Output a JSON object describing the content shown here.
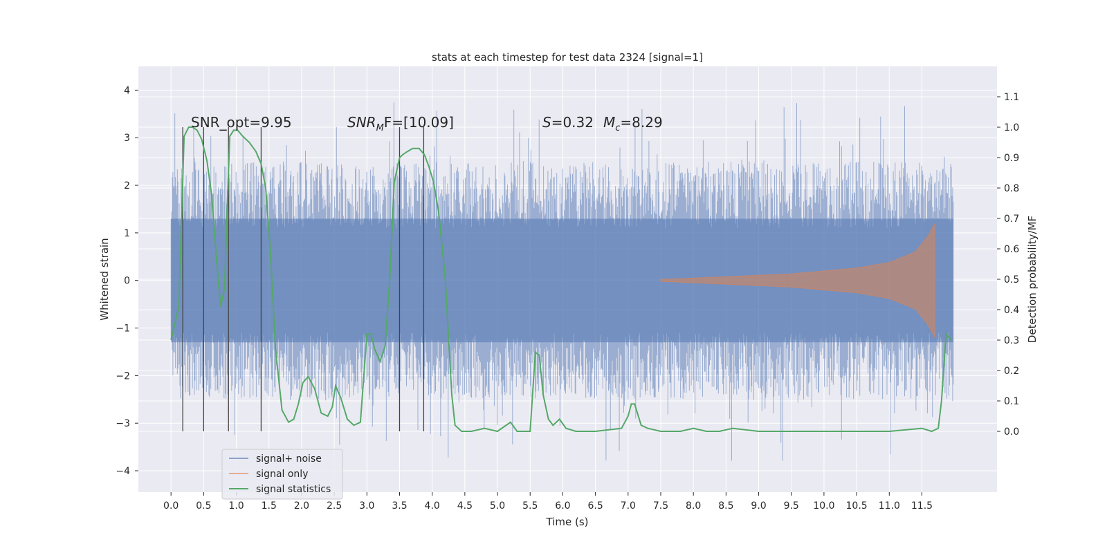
{
  "chart_data": {
    "type": "line",
    "title": "stats at each timestep for test data 2324 [signal=1]",
    "xlabel": "Time (s)",
    "ylabel_left": "Whitened strain",
    "ylabel_right": "Detection probability/MF",
    "xlim": [
      -0.5,
      12.65
    ],
    "ylim_left": [
      -4.45,
      4.5
    ],
    "ylim_right": [
      -0.2,
      1.2
    ],
    "x_ticks": [
      "0.0",
      "0.5",
      "1.0",
      "1.5",
      "2.0",
      "2.5",
      "3.0",
      "3.5",
      "4.0",
      "4.5",
      "5.0",
      "5.5",
      "6.0",
      "6.5",
      "7.0",
      "7.5",
      "8.0",
      "8.5",
      "9.0",
      "9.5",
      "10.0",
      "10.5",
      "11.0",
      "11.5"
    ],
    "y_ticks_left": [
      "−4",
      "−3",
      "−2",
      "−1",
      "0",
      "1",
      "2",
      "3",
      "4"
    ],
    "y_ticks_right": [
      "0.0",
      "0.1",
      "0.2",
      "0.3",
      "0.4",
      "0.5",
      "0.6",
      "0.7",
      "0.8",
      "0.9",
      "1.0",
      "1.1"
    ],
    "grid": true,
    "legend_position": "lower-left",
    "annotations": {
      "snr_opt": "SNR_opt=9.95",
      "snr_mf_base": "SNR",
      "snr_mf_sub": "M",
      "snr_mf_rest": "F=[10.09]",
      "s_var": "S",
      "s_val": "=0.32",
      "mc_var": "M",
      "mc_sub": "c",
      "mc_val": "=8.29"
    },
    "vertical_markers_x": [
      0.18,
      0.5,
      0.88,
      1.38,
      3.5,
      3.87
    ],
    "series": [
      {
        "name": "signal+ noise",
        "axis": "left",
        "color": "#4c72b0",
        "description_range": [
          -3.3,
          3.3
        ],
        "x_range": [
          0.0,
          11.98
        ]
      },
      {
        "name": "signal only",
        "axis": "left",
        "color": "#dd8452",
        "x_range": [
          7.5,
          11.7
        ],
        "envelope": [
          [
            7.5,
            0.02
          ],
          [
            8.5,
            0.08
          ],
          [
            9.5,
            0.14
          ],
          [
            10.5,
            0.26
          ],
          [
            11.0,
            0.38
          ],
          [
            11.4,
            0.6
          ],
          [
            11.6,
            0.95
          ],
          [
            11.7,
            1.2
          ]
        ]
      },
      {
        "name": "signal statistics",
        "axis": "right",
        "color": "#55a868",
        "x": [
          0.0,
          0.12,
          0.2,
          0.27,
          0.33,
          0.4,
          0.47,
          0.55,
          0.62,
          0.7,
          0.76,
          0.82,
          0.86,
          0.9,
          0.96,
          1.02,
          1.1,
          1.2,
          1.3,
          1.38,
          1.45,
          1.52,
          1.6,
          1.7,
          1.8,
          1.88,
          1.95,
          2.02,
          2.1,
          2.2,
          2.3,
          2.4,
          2.47,
          2.52,
          2.6,
          2.7,
          2.8,
          2.9,
          3.0,
          3.06,
          3.12,
          3.2,
          3.28,
          3.35,
          3.42,
          3.5,
          3.55,
          3.62,
          3.7,
          3.8,
          3.88,
          3.95,
          4.02,
          4.1,
          4.2,
          4.3,
          4.35,
          4.45,
          4.6,
          4.8,
          5.0,
          5.2,
          5.3,
          5.5,
          5.58,
          5.64,
          5.7,
          5.78,
          5.85,
          5.95,
          6.05,
          6.2,
          6.5,
          6.9,
          7.0,
          7.05,
          7.1,
          7.2,
          7.3,
          7.5,
          7.8,
          8.0,
          8.2,
          8.4,
          8.6,
          9.0,
          10.0,
          11.0,
          11.5,
          11.65,
          11.75,
          11.8,
          11.87,
          11.95
        ],
        "values": [
          0.3,
          0.41,
          0.97,
          1.0,
          1.0,
          0.99,
          0.96,
          0.89,
          0.78,
          0.56,
          0.41,
          0.47,
          0.73,
          0.97,
          0.99,
          0.99,
          0.97,
          0.95,
          0.92,
          0.88,
          0.8,
          0.6,
          0.27,
          0.07,
          0.03,
          0.04,
          0.09,
          0.16,
          0.18,
          0.14,
          0.06,
          0.05,
          0.08,
          0.15,
          0.11,
          0.04,
          0.02,
          0.03,
          0.32,
          0.32,
          0.27,
          0.23,
          0.28,
          0.5,
          0.82,
          0.9,
          0.91,
          0.92,
          0.93,
          0.93,
          0.91,
          0.87,
          0.82,
          0.72,
          0.5,
          0.12,
          0.02,
          0.0,
          0.0,
          0.01,
          0.0,
          0.03,
          0.0,
          0.0,
          0.26,
          0.25,
          0.12,
          0.04,
          0.02,
          0.04,
          0.01,
          0.0,
          0.0,
          0.01,
          0.05,
          0.09,
          0.09,
          0.02,
          0.01,
          0.0,
          0.0,
          0.01,
          0.0,
          0.0,
          0.01,
          0.0,
          0.0,
          0.0,
          0.01,
          0.0,
          0.01,
          0.1,
          0.32,
          0.3
        ]
      }
    ]
  }
}
